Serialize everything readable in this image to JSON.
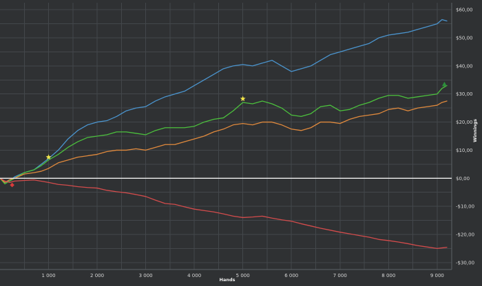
{
  "chart_data": {
    "type": "line",
    "title": "",
    "xlabel": "Hands",
    "ylabel": "Winnings",
    "xlim": [
      0,
      9300
    ],
    "ylim": [
      -32.5,
      62.5
    ],
    "x_ticks": [
      1000,
      2000,
      3000,
      4000,
      5000,
      6000,
      7000,
      8000,
      9000
    ],
    "x_tick_labels": [
      "1 000",
      "2 000",
      "3 000",
      "4 000",
      "5 000",
      "6 000",
      "7 000",
      "8 000",
      "9 000"
    ],
    "y_ticks": [
      -30,
      -20,
      -10,
      0,
      10,
      20,
      30,
      40,
      50,
      60
    ],
    "y_tick_labels": [
      "-$30,00",
      "-$20,00",
      "-$10,00",
      "$0,00",
      "$10,00",
      "$20,00",
      "$30,00",
      "$40,00",
      "$50,00",
      "$60,00"
    ],
    "grid": true,
    "y_axis_position": "right",
    "zero_line": true,
    "colors": {
      "background": "#2f3133",
      "grid": "#43474b",
      "zero_line": "#f2f2f2",
      "text": "#d7d7d7"
    },
    "series": [
      {
        "color": "#4b95cf",
        "values": [
          [
            0,
            0
          ],
          [
            100,
            -1.5
          ],
          [
            200,
            -1
          ],
          [
            300,
            0.5
          ],
          [
            500,
            2
          ],
          [
            700,
            3
          ],
          [
            850,
            5
          ],
          [
            1000,
            7
          ],
          [
            1200,
            10
          ],
          [
            1400,
            14
          ],
          [
            1600,
            17
          ],
          [
            1800,
            19
          ],
          [
            2000,
            20
          ],
          [
            2200,
            20.5
          ],
          [
            2400,
            22
          ],
          [
            2600,
            24
          ],
          [
            2800,
            25
          ],
          [
            3000,
            25.5
          ],
          [
            3200,
            27.5
          ],
          [
            3400,
            29
          ],
          [
            3600,
            30
          ],
          [
            3800,
            31
          ],
          [
            4000,
            33
          ],
          [
            4200,
            35
          ],
          [
            4400,
            37
          ],
          [
            4600,
            39
          ],
          [
            4800,
            40
          ],
          [
            5000,
            40.5
          ],
          [
            5200,
            40
          ],
          [
            5400,
            41
          ],
          [
            5600,
            42
          ],
          [
            5800,
            40
          ],
          [
            6000,
            38
          ],
          [
            6200,
            39
          ],
          [
            6400,
            40
          ],
          [
            6600,
            42
          ],
          [
            6800,
            44
          ],
          [
            7000,
            45
          ],
          [
            7200,
            46
          ],
          [
            7400,
            47
          ],
          [
            7600,
            48
          ],
          [
            7800,
            50
          ],
          [
            8000,
            51
          ],
          [
            8200,
            51.5
          ],
          [
            8400,
            52
          ],
          [
            8600,
            53
          ],
          [
            8800,
            54
          ],
          [
            9000,
            55
          ],
          [
            9100,
            56.5
          ],
          [
            9200,
            56
          ]
        ]
      },
      {
        "color": "#4cc13d",
        "values": [
          [
            0,
            0
          ],
          [
            100,
            -2
          ],
          [
            200,
            -1
          ],
          [
            300,
            0
          ],
          [
            500,
            2
          ],
          [
            700,
            3
          ],
          [
            850,
            4.5
          ],
          [
            1000,
            6.5
          ],
          [
            1200,
            8.5
          ],
          [
            1400,
            11
          ],
          [
            1600,
            13
          ],
          [
            1800,
            14.5
          ],
          [
            2000,
            15
          ],
          [
            2200,
            15.5
          ],
          [
            2400,
            16.5
          ],
          [
            2600,
            16.5
          ],
          [
            2800,
            16
          ],
          [
            3000,
            15.5
          ],
          [
            3200,
            17
          ],
          [
            3400,
            18
          ],
          [
            3600,
            18
          ],
          [
            3800,
            18
          ],
          [
            4000,
            18.5
          ],
          [
            4200,
            20
          ],
          [
            4400,
            21
          ],
          [
            4600,
            21.5
          ],
          [
            4800,
            24
          ],
          [
            5000,
            27
          ],
          [
            5200,
            26.5
          ],
          [
            5400,
            27.5
          ],
          [
            5600,
            26.5
          ],
          [
            5800,
            25
          ],
          [
            6000,
            22.5
          ],
          [
            6200,
            22
          ],
          [
            6400,
            23
          ],
          [
            6600,
            25.5
          ],
          [
            6800,
            26
          ],
          [
            7000,
            24
          ],
          [
            7200,
            24.5
          ],
          [
            7400,
            26
          ],
          [
            7600,
            27
          ],
          [
            7800,
            28.5
          ],
          [
            8000,
            29.5
          ],
          [
            8200,
            29.5
          ],
          [
            8400,
            28.5
          ],
          [
            8600,
            29
          ],
          [
            8800,
            29.5
          ],
          [
            9000,
            30
          ],
          [
            9100,
            32
          ],
          [
            9200,
            33
          ]
        ]
      },
      {
        "color": "#e18a3d",
        "values": [
          [
            0,
            0
          ],
          [
            100,
            -1.5
          ],
          [
            200,
            -0.5
          ],
          [
            300,
            0
          ],
          [
            500,
            1.5
          ],
          [
            700,
            2
          ],
          [
            850,
            2.5
          ],
          [
            1000,
            3.5
          ],
          [
            1200,
            5.5
          ],
          [
            1400,
            6.5
          ],
          [
            1600,
            7.5
          ],
          [
            1800,
            8
          ],
          [
            2000,
            8.5
          ],
          [
            2200,
            9.5
          ],
          [
            2400,
            10
          ],
          [
            2600,
            10
          ],
          [
            2800,
            10.5
          ],
          [
            3000,
            10
          ],
          [
            3200,
            11
          ],
          [
            3400,
            12
          ],
          [
            3600,
            12
          ],
          [
            3800,
            13
          ],
          [
            4000,
            14
          ],
          [
            4200,
            15
          ],
          [
            4400,
            16.5
          ],
          [
            4600,
            17.5
          ],
          [
            4800,
            19
          ],
          [
            5000,
            19.5
          ],
          [
            5200,
            19
          ],
          [
            5400,
            20
          ],
          [
            5600,
            20
          ],
          [
            5800,
            19
          ],
          [
            6000,
            17.5
          ],
          [
            6200,
            17
          ],
          [
            6400,
            18
          ],
          [
            6600,
            20
          ],
          [
            6800,
            20
          ],
          [
            7000,
            19.5
          ],
          [
            7200,
            21
          ],
          [
            7400,
            22
          ],
          [
            7600,
            22.5
          ],
          [
            7800,
            23
          ],
          [
            8000,
            24.5
          ],
          [
            8200,
            25
          ],
          [
            8400,
            24
          ],
          [
            8600,
            25
          ],
          [
            8800,
            25.5
          ],
          [
            9000,
            26
          ],
          [
            9100,
            27
          ],
          [
            9200,
            27.5
          ]
        ]
      },
      {
        "color": "#d44c4c",
        "values": [
          [
            0,
            0
          ],
          [
            100,
            -1
          ],
          [
            200,
            -1.5
          ],
          [
            300,
            -1
          ],
          [
            500,
            -0.8
          ],
          [
            700,
            -0.6
          ],
          [
            900,
            -1.2
          ],
          [
            1000,
            -1.5
          ],
          [
            1200,
            -2.2
          ],
          [
            1400,
            -2.5
          ],
          [
            1600,
            -3
          ],
          [
            1800,
            -3.3
          ],
          [
            2000,
            -3.5
          ],
          [
            2200,
            -4.3
          ],
          [
            2400,
            -4.8
          ],
          [
            2600,
            -5.2
          ],
          [
            2800,
            -5.8
          ],
          [
            3000,
            -6.5
          ],
          [
            3200,
            -7.8
          ],
          [
            3400,
            -9
          ],
          [
            3600,
            -9.3
          ],
          [
            3800,
            -10.2
          ],
          [
            4000,
            -11
          ],
          [
            4200,
            -11.5
          ],
          [
            4400,
            -12
          ],
          [
            4600,
            -12.7
          ],
          [
            4800,
            -13.5
          ],
          [
            5000,
            -14
          ],
          [
            5200,
            -13.8
          ],
          [
            5400,
            -13.5
          ],
          [
            5600,
            -14.2
          ],
          [
            5800,
            -14.8
          ],
          [
            6000,
            -15.3
          ],
          [
            6200,
            -16.2
          ],
          [
            6400,
            -17
          ],
          [
            6600,
            -17.8
          ],
          [
            6800,
            -18.5
          ],
          [
            7000,
            -19.2
          ],
          [
            7200,
            -19.8
          ],
          [
            7400,
            -20.4
          ],
          [
            7600,
            -21
          ],
          [
            7800,
            -21.8
          ],
          [
            8000,
            -22.2
          ],
          [
            8200,
            -22.7
          ],
          [
            8400,
            -23.3
          ],
          [
            8600,
            -24
          ],
          [
            8800,
            -24.5
          ],
          [
            9000,
            -25
          ],
          [
            9100,
            -24.8
          ],
          [
            9200,
            -24.6
          ]
        ]
      }
    ],
    "markers": [
      {
        "x": 1000,
        "y": 7.5,
        "color": "#f3e64a",
        "symbol": "star"
      },
      {
        "x": 5000,
        "y": 28.3,
        "color": "#f3e64a",
        "symbol": "star"
      },
      {
        "x": 250,
        "y": -2.4,
        "color": "#d93b3b",
        "symbol": "diamond"
      },
      {
        "x": 9150,
        "y": 33.4,
        "color": "#2d8f3c",
        "symbol": "triangle"
      }
    ]
  }
}
